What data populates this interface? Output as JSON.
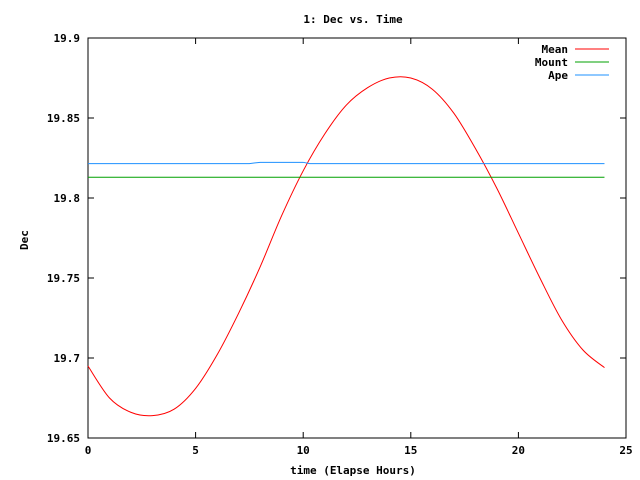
{
  "chart_data": {
    "type": "line",
    "title": "1: Dec vs. Time",
    "xlabel": "time (Elapse Hours)",
    "ylabel": "Dec",
    "xlim": [
      0,
      25
    ],
    "ylim": [
      19.65,
      19.9
    ],
    "xticks": [
      "0",
      "5",
      "10",
      "15",
      "20",
      "25"
    ],
    "yticks": [
      "19.65",
      "19.7",
      "19.75",
      "19.8",
      "19.85",
      "19.9"
    ],
    "grid": false,
    "legend_position": "top-right",
    "series": [
      {
        "name": "Mean",
        "color": "#ff0000",
        "x": [
          0,
          1,
          2,
          3,
          4,
          5,
          6,
          7,
          8,
          9,
          10,
          11,
          12,
          13,
          14,
          15,
          16,
          17,
          18,
          19,
          20,
          21,
          22,
          23,
          24
        ],
        "y": [
          19.695,
          19.675,
          19.666,
          19.664,
          19.668,
          19.681,
          19.702,
          19.728,
          19.757,
          19.789,
          19.817,
          19.84,
          19.858,
          19.869,
          19.875,
          19.875,
          19.868,
          19.853,
          19.831,
          19.806,
          19.778,
          19.75,
          19.724,
          19.705,
          19.694
        ]
      },
      {
        "name": "Mount",
        "color": "#00a000",
        "x": [
          0,
          24
        ],
        "y": [
          19.813,
          19.813
        ]
      },
      {
        "name": "Ape",
        "color": "#1e90ff",
        "x": [
          0,
          7.5,
          8,
          10,
          10.3,
          24
        ],
        "y": [
          19.8215,
          19.8215,
          19.8223,
          19.8223,
          19.8215,
          19.8215
        ]
      }
    ]
  }
}
